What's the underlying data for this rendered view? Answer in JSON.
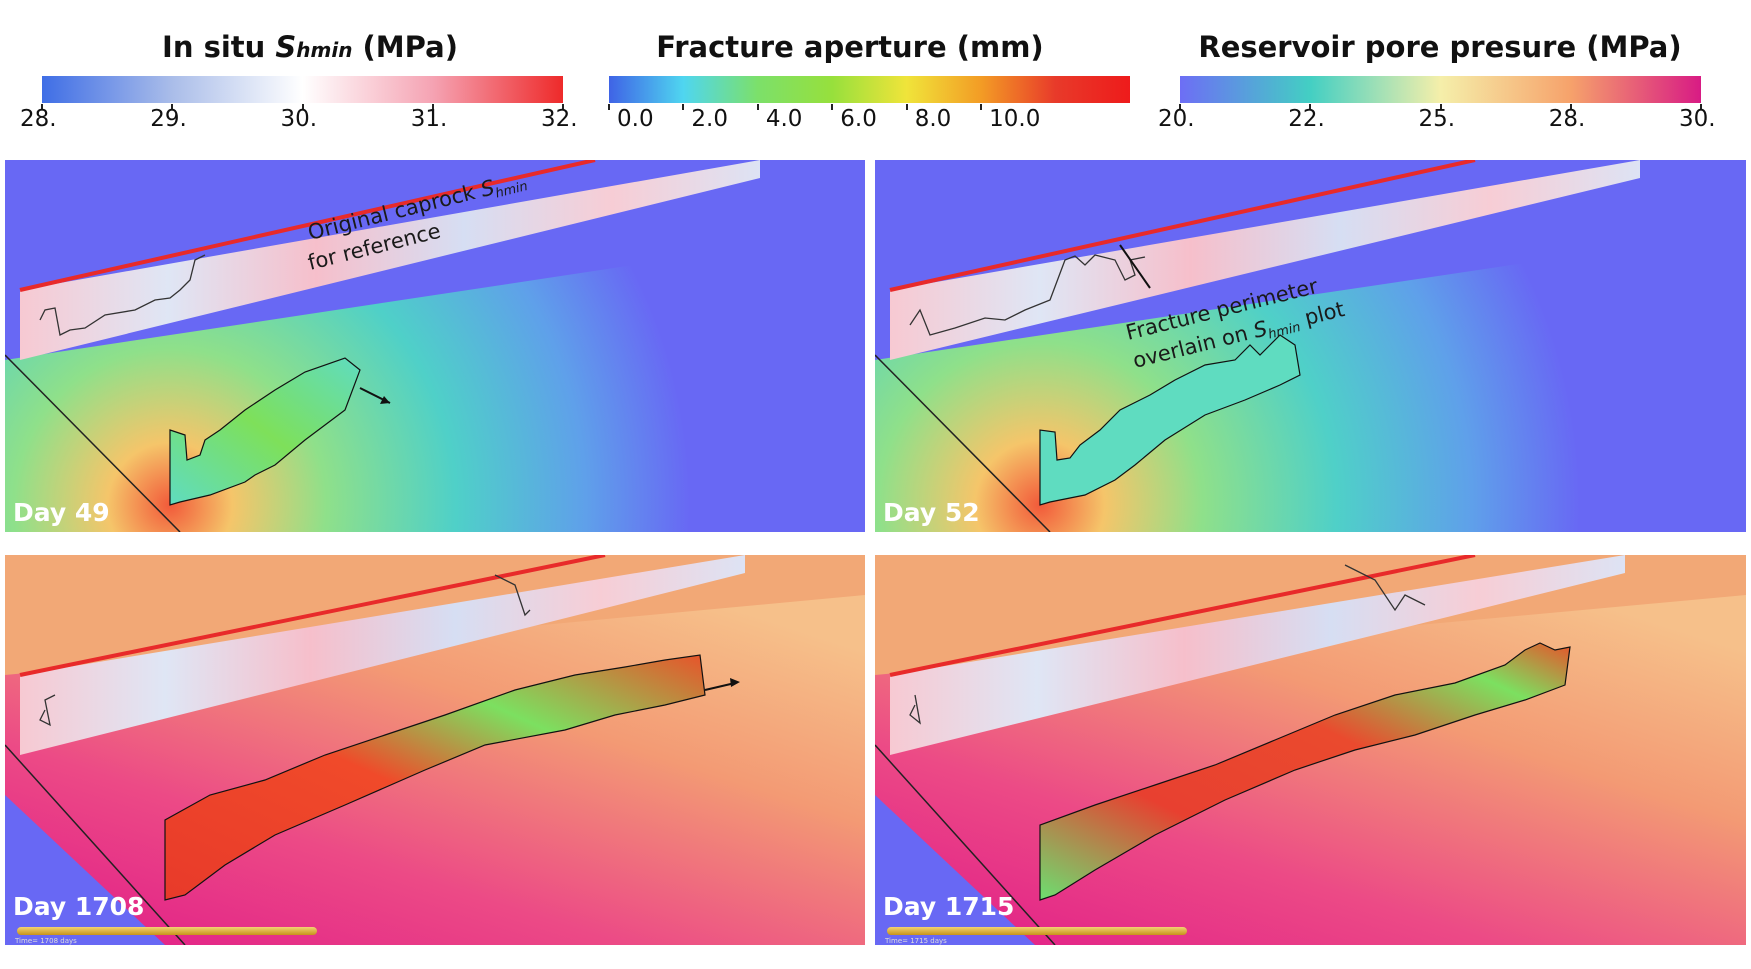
{
  "colorbars": [
    {
      "title_main": "In situ ",
      "title_var": "S",
      "title_sub": "hmin",
      "title_unit": " (MPa)",
      "ticks": [
        "28.",
        "29.",
        "30.",
        "31.",
        "32."
      ],
      "colors": [
        "#3f6ee6",
        "#aabde9",
        "#ffffff",
        "#f5a3b3",
        "#ee2a2a"
      ]
    },
    {
      "title": "Fracture aperture (mm)",
      "ticks": [
        "0.0",
        "2.0",
        "4.0",
        "6.0",
        "8.0",
        "10.0"
      ],
      "colors": [
        "#3f63e6",
        "#4fd6f0",
        "#7ce06a",
        "#97e03c",
        "#f0e43a",
        "#f39c25",
        "#e83a2a",
        "#ee1b1b"
      ]
    },
    {
      "title": "Reservoir pore presure (MPa)",
      "ticks": [
        "20.",
        "22.",
        "25.",
        "28.",
        "30."
      ],
      "colors": [
        "#6d6ef5",
        "#43cfc3",
        "#f5efaa",
        "#f6a26b",
        "#d81b84"
      ]
    }
  ],
  "panels": [
    {
      "day": "Day 49",
      "background": "#6868f4"
    },
    {
      "day": "Day 52",
      "background": "#6868f4"
    },
    {
      "day": "Day 1708",
      "background": "#f2a876",
      "time_text": "Time= 1708 days"
    },
    {
      "day": "Day 1715",
      "background": "#f2a876",
      "time_text": "Time= 1715 days"
    }
  ],
  "annotations": {
    "caprock_line1": "Original caprock ",
    "caprock_var": "S",
    "caprock_sub": "hmin",
    "caprock_line2": "for reference",
    "perimeter_line1": "Fracture perimeter",
    "perimeter_line2_pre": "overlain on ",
    "perimeter_var": "S",
    "perimeter_sub": "hmin",
    "perimeter_line2_post": " plot"
  }
}
